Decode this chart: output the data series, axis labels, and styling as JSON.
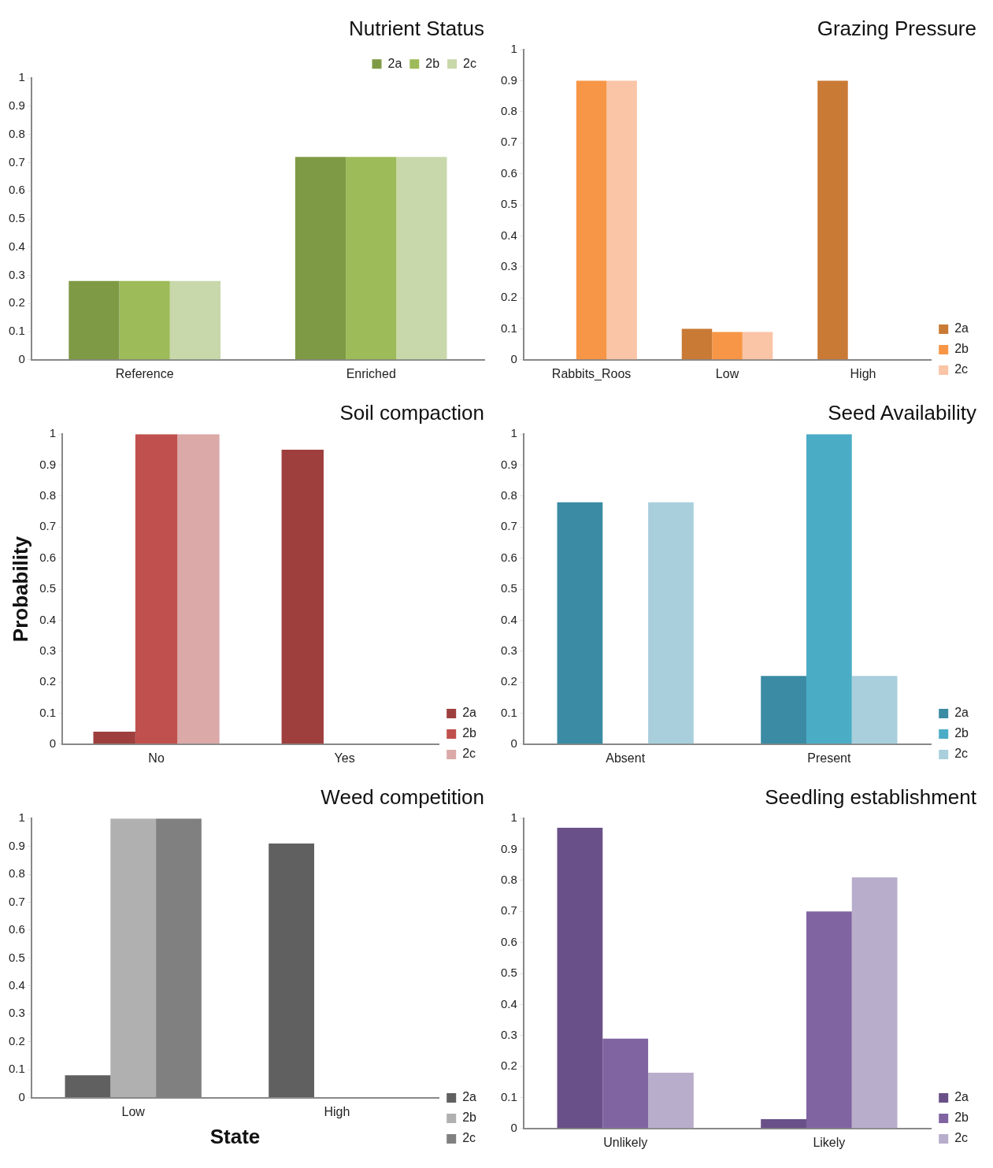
{
  "chart_data": [
    {
      "type": "bar",
      "title": "Nutrient Status",
      "categories": [
        "Reference",
        "Enriched"
      ],
      "series": [
        {
          "name": "2a",
          "color": "#7f9a45",
          "values": [
            0.28,
            0.72
          ]
        },
        {
          "name": "2b",
          "color": "#9dbb59",
          "values": [
            0.28,
            0.72
          ]
        },
        {
          "name": "2c",
          "color": "#c8d8aa",
          "values": [
            0.28,
            0.72
          ]
        }
      ],
      "ylim": [
        0,
        1
      ],
      "yticks": [
        0,
        0.1,
        0.2,
        0.3,
        0.4,
        0.5,
        0.6,
        0.7,
        0.8,
        0.9,
        1
      ],
      "grid": false,
      "legend": "top right"
    },
    {
      "type": "bar",
      "title": "Grazing Pressure",
      "categories": [
        "Rabbits_Roos",
        "Low",
        "High"
      ],
      "series": [
        {
          "name": "2a",
          "color": "#c97a35",
          "values": [
            0,
            0.1,
            0.9
          ]
        },
        {
          "name": "2b",
          "color": "#f79646",
          "values": [
            0.9,
            0.09,
            0
          ]
        },
        {
          "name": "2c",
          "color": "#fac4a6",
          "values": [
            0.9,
            0.09,
            0
          ]
        }
      ],
      "ylim": [
        0,
        1
      ],
      "yticks": [
        0,
        0.1,
        0.2,
        0.3,
        0.4,
        0.5,
        0.6,
        0.7,
        0.8,
        0.9,
        1
      ],
      "grid": false,
      "legend": "right"
    },
    {
      "type": "bar",
      "title": "Soil compaction",
      "ylabel": "Probability",
      "categories": [
        "No",
        "Yes"
      ],
      "series": [
        {
          "name": "2a",
          "color": "#9e3f3e",
          "values": [
            0.04,
            0.95
          ]
        },
        {
          "name": "2b",
          "color": "#c0504d",
          "values": [
            1,
            0
          ]
        },
        {
          "name": "2c",
          "color": "#daa9a8",
          "values": [
            1,
            0
          ]
        }
      ],
      "ylim": [
        0,
        1
      ],
      "yticks": [
        0,
        0.1,
        0.2,
        0.3,
        0.4,
        0.5,
        0.6,
        0.7,
        0.8,
        0.9,
        1
      ],
      "grid": false,
      "legend": "right"
    },
    {
      "type": "bar",
      "title": "Seed Availability",
      "categories": [
        "Absent",
        "Present"
      ],
      "series": [
        {
          "name": "2a",
          "color": "#3a8ba3",
          "values": [
            0.78,
            0.22
          ]
        },
        {
          "name": "2b",
          "color": "#4bacc6",
          "values": [
            0,
            1
          ]
        },
        {
          "name": "2c",
          "color": "#a9cfdc",
          "values": [
            0.78,
            0.22
          ]
        }
      ],
      "ylim": [
        0,
        1
      ],
      "yticks": [
        0,
        0.1,
        0.2,
        0.3,
        0.4,
        0.5,
        0.6,
        0.7,
        0.8,
        0.9,
        1
      ],
      "grid": false,
      "legend": "right"
    },
    {
      "type": "bar",
      "title": "Weed competition",
      "xlabel": "State",
      "categories": [
        "Low",
        "High"
      ],
      "series": [
        {
          "name": "2a",
          "color": "#606060",
          "values": [
            0.08,
            0.91
          ]
        },
        {
          "name": "2b",
          "color": "#b0b0b0",
          "values": [
            1,
            0
          ]
        },
        {
          "name": "2c",
          "color": "#808080",
          "values": [
            1,
            0
          ]
        }
      ],
      "ylim": [
        0,
        1
      ],
      "yticks": [
        0,
        0.1,
        0.2,
        0.3,
        0.4,
        0.5,
        0.6,
        0.7,
        0.8,
        0.9,
        1
      ],
      "grid": false,
      "legend": "right"
    },
    {
      "type": "bar",
      "title": "Seedling establishment",
      "categories": [
        "Unlikely",
        "Likely"
      ],
      "series": [
        {
          "name": "2a",
          "color": "#6a5088",
          "values": [
            0.97,
            0.03
          ]
        },
        {
          "name": "2b",
          "color": "#8064a2",
          "values": [
            0.29,
            0.7
          ]
        },
        {
          "name": "2c",
          "color": "#b8aecb",
          "values": [
            0.18,
            0.81
          ]
        }
      ],
      "ylim": [
        0,
        1
      ],
      "yticks": [
        0,
        0.1,
        0.2,
        0.3,
        0.4,
        0.5,
        0.6,
        0.7,
        0.8,
        0.9,
        1
      ],
      "grid": false,
      "legend": "right"
    }
  ]
}
